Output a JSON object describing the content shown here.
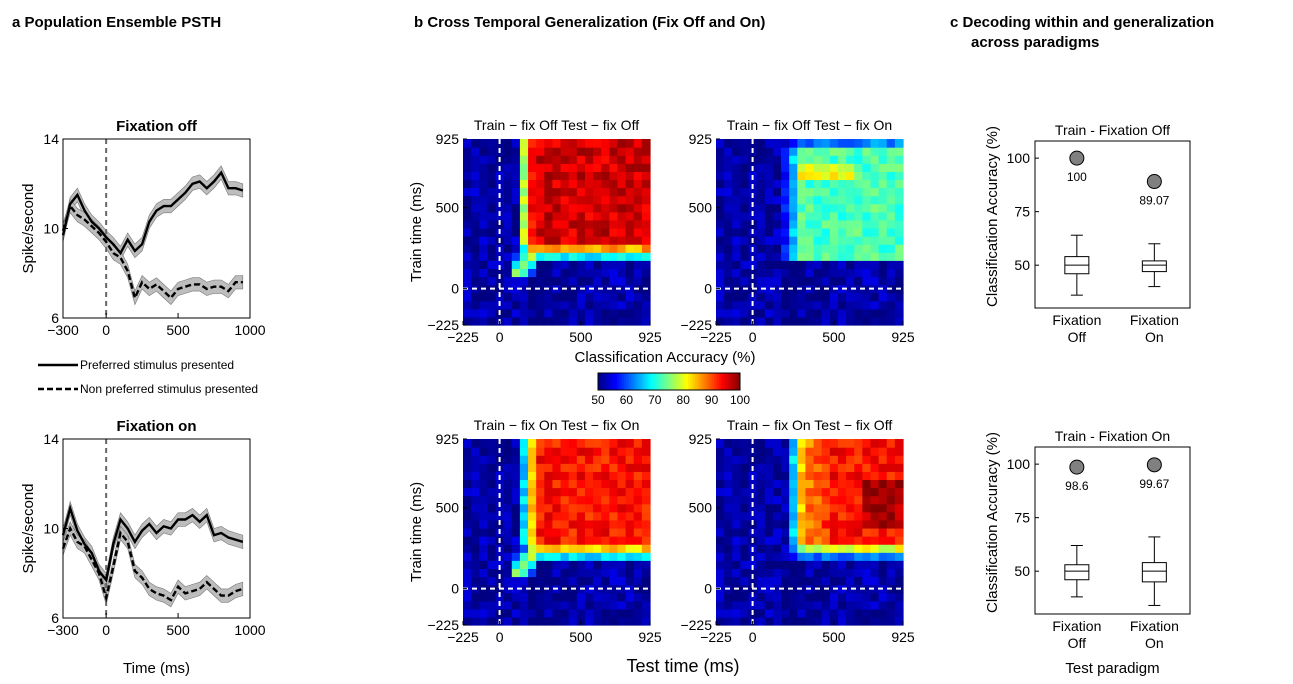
{
  "panels": {
    "a_title": "a  Population Ensemble PSTH",
    "b_title": "b  Cross Temporal Generalization (Fix Off and On)",
    "c_title_line1": "c  Decoding within and generalization",
    "c_title_line2": "across paradigms"
  },
  "colors": {
    "axis": "#000000",
    "dashed_marker": "#666666",
    "sem_band": "#bdbdbd",
    "outlier_marker": "#808080",
    "heatmap_low": "#00008f",
    "heatmap_high": "#800000"
  },
  "chart_data": [
    {
      "type": "line",
      "panel": "a",
      "title": "Fixation off",
      "xlabel": "",
      "ylabel": "Spike/second",
      "xlim": [
        -300,
        1000
      ],
      "ylim": [
        6,
        14
      ],
      "xticks": [
        -300,
        0,
        500,
        1000
      ],
      "yticks": [
        6,
        10,
        14
      ],
      "x": [
        -300,
        -250,
        -200,
        -150,
        -100,
        -50,
        0,
        50,
        100,
        150,
        200,
        250,
        300,
        350,
        400,
        450,
        500,
        550,
        600,
        650,
        700,
        750,
        800,
        850,
        900,
        950
      ],
      "series": [
        {
          "name": "Preferred stimulus presented",
          "style": "solid",
          "values": [
            9.7,
            11.1,
            11.5,
            10.8,
            10.3,
            10.0,
            9.6,
            9.3,
            8.9,
            9.5,
            9.0,
            9.3,
            10.3,
            10.8,
            11.0,
            11.0,
            11.3,
            11.6,
            12.0,
            12.1,
            11.8,
            12.1,
            12.5,
            11.8,
            11.8,
            11.7
          ],
          "sem": 0.3
        },
        {
          "name": "Non preferred stimulus presented",
          "style": "dashed",
          "values": [
            9.9,
            11.0,
            10.6,
            10.4,
            10.1,
            9.8,
            9.4,
            8.9,
            8.7,
            8.1,
            6.9,
            7.6,
            7.3,
            7.5,
            7.2,
            6.9,
            7.3,
            7.4,
            7.5,
            7.5,
            7.3,
            7.4,
            7.4,
            7.2,
            7.6,
            7.6
          ],
          "sem": 0.3
        }
      ],
      "vline": 0
    },
    {
      "type": "line",
      "panel": "a",
      "title": "Fixation on",
      "xlabel": "Time (ms)",
      "ylabel": "Spike/second",
      "xlim": [
        -300,
        1000
      ],
      "ylim": [
        6,
        14
      ],
      "xticks": [
        -300,
        0,
        500,
        1000
      ],
      "yticks": [
        6,
        10,
        14
      ],
      "x": [
        -300,
        -250,
        -200,
        -150,
        -100,
        -50,
        0,
        50,
        100,
        150,
        200,
        250,
        300,
        350,
        400,
        450,
        500,
        550,
        600,
        650,
        700,
        750,
        800,
        850,
        900,
        950
      ],
      "series": [
        {
          "name": "Preferred stimulus presented",
          "style": "solid",
          "values": [
            9.7,
            10.9,
            9.9,
            9.3,
            8.9,
            8.1,
            7.7,
            9.3,
            10.4,
            10.0,
            9.4,
            9.9,
            10.2,
            9.8,
            10.1,
            10.0,
            10.4,
            10.4,
            10.6,
            10.3,
            10.6,
            9.7,
            9.8,
            9.6,
            9.5,
            9.4
          ],
          "sem": 0.3
        },
        {
          "name": "Non preferred stimulus presented",
          "style": "dashed",
          "values": [
            9.1,
            10.0,
            9.4,
            9.2,
            8.6,
            8.0,
            6.9,
            8.3,
            9.8,
            9.4,
            8.1,
            7.8,
            7.3,
            7.1,
            7.0,
            6.8,
            7.4,
            7.1,
            7.2,
            7.3,
            7.6,
            7.3,
            7.0,
            7.0,
            7.2,
            7.3
          ],
          "sem": 0.3
        }
      ],
      "vline": 0
    },
    {
      "type": "heatmap",
      "panel": "b",
      "title": "Train − fix Off  Test − fix Off",
      "xlabel": "",
      "ylabel": "Train time (ms)",
      "xlim": [
        -225,
        925
      ],
      "ylim": [
        -225,
        925
      ],
      "xticks": [
        -225,
        0,
        500,
        925
      ],
      "yticks": [
        -225,
        0,
        500,
        925
      ],
      "cell_ms": 50,
      "pattern": {
        "onset_train": 175,
        "onset_test": 100,
        "peak": 96,
        "sharp": true,
        "band_rows": []
      }
    },
    {
      "type": "heatmap",
      "panel": "b",
      "title": "Train − fix Off  Test − fix On",
      "xlabel": "",
      "ylabel": "",
      "xlim": [
        -225,
        925
      ],
      "ylim": [
        -225,
        925
      ],
      "xticks": [
        -225,
        0,
        500,
        925
      ],
      "yticks": [
        -225,
        0,
        500,
        925
      ],
      "cell_ms": 50,
      "pattern": {
        "onset_train": 175,
        "onset_test": 175,
        "peak": 82,
        "sharp": false,
        "band_rows": [
          825,
          725,
          625,
          525,
          425,
          325,
          225
        ]
      }
    },
    {
      "type": "heatmap",
      "panel": "b",
      "title": "Train − fix On  Test − fix On",
      "xlabel": "",
      "ylabel": "Train time (ms)",
      "xlim": [
        -225,
        925
      ],
      "ylim": [
        -225,
        925
      ],
      "xticks": [
        -225,
        0,
        500,
        925
      ],
      "yticks": [
        -225,
        0,
        500,
        925
      ],
      "cell_ms": 50,
      "pattern": {
        "onset_train": 175,
        "onset_test": 125,
        "peak": 93,
        "sharp": true,
        "band_rows": []
      }
    },
    {
      "type": "heatmap",
      "panel": "b",
      "title": "Train − fix On  Test − fix Off",
      "xlabel": "",
      "ylabel": "",
      "xlim": [
        -225,
        925
      ],
      "ylim": [
        -225,
        925
      ],
      "xticks": [
        -225,
        0,
        500,
        925
      ],
      "yticks": [
        -225,
        0,
        500,
        925
      ],
      "cell_ms": 50,
      "pattern": {
        "onset_train": 175,
        "onset_test": 200,
        "peak": 93,
        "sharp": false,
        "band_rows": []
      }
    },
    {
      "type": "colorbar",
      "panel": "b",
      "title": "Classification Accuracy (%)",
      "range": [
        50,
        100
      ],
      "ticks": [
        50,
        60,
        70,
        80,
        90,
        100
      ],
      "shared_xlabel": "Test time (ms)"
    },
    {
      "type": "box",
      "panel": "c",
      "title": "Train - Fixation Off",
      "ylabel": "Classification Accuracy (%)",
      "ylim": [
        30,
        108
      ],
      "yticks": [
        50,
        75,
        100
      ],
      "categories": [
        "Fixation\nOff",
        "Fixation\nOn"
      ],
      "boxes": [
        {
          "whisker_low": 36,
          "q1": 46,
          "median": 50,
          "q3": 54,
          "whisker_high": 64
        },
        {
          "whisker_low": 40,
          "q1": 47,
          "median": 50,
          "q3": 52,
          "whisker_high": 60
        }
      ],
      "markers": [
        100,
        89.07
      ],
      "marker_labels": [
        "100",
        "89.07"
      ]
    },
    {
      "type": "box",
      "panel": "c",
      "title": "Train - Fixation On",
      "ylabel": "Classification Accuracy (%)",
      "xlabel": "Test paradigm",
      "ylim": [
        30,
        108
      ],
      "yticks": [
        50,
        75,
        100
      ],
      "categories": [
        "Fixation\nOff",
        "Fixation\nOn"
      ],
      "boxes": [
        {
          "whisker_low": 38,
          "q1": 46,
          "median": 50,
          "q3": 53,
          "whisker_high": 62
        },
        {
          "whisker_low": 34,
          "q1": 45,
          "median": 50,
          "q3": 54,
          "whisker_high": 66
        }
      ],
      "markers": [
        98.6,
        99.67
      ],
      "marker_labels": [
        "98.6",
        "99.67"
      ]
    }
  ]
}
